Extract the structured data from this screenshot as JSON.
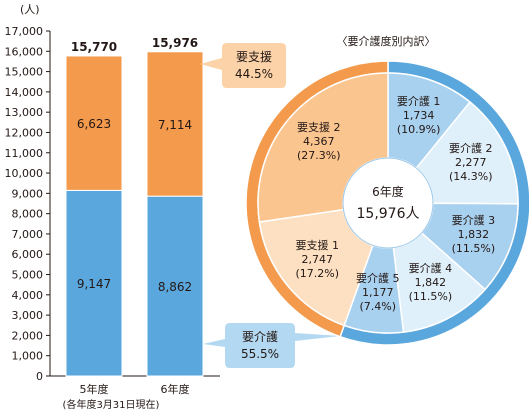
{
  "chart_data": [
    {
      "type": "bar",
      "stacked": true,
      "unit_label": "(人)",
      "categories": [
        "5年度",
        "6年度"
      ],
      "totals": [
        "15,770",
        "15,976"
      ],
      "series": [
        {
          "name": "要介護",
          "values": [
            9147,
            8862
          ],
          "labels": [
            "9,147",
            "8,862"
          ],
          "color": "#5aa7de"
        },
        {
          "name": "要支援",
          "values": [
            6623,
            7114
          ],
          "labels": [
            "6,623",
            "7,114"
          ],
          "color": "#f39a4c"
        }
      ],
      "ylim": [
        0,
        17000
      ],
      "yticks": [
        "0",
        "1,000",
        "2,000",
        "3,000",
        "4,000",
        "5,000",
        "6,000",
        "7,000",
        "8,000",
        "9,000",
        "10,000",
        "11,000",
        "12,000",
        "13,000",
        "14,000",
        "15,000",
        "16,000",
        "17,000"
      ],
      "note": "(各年度3月31日現在)",
      "callouts": [
        {
          "line1": "要支援",
          "line2": "44.5%",
          "fill": "#fcd2a8"
        },
        {
          "line1": "要介護",
          "line2": "55.5%",
          "fill": "#b3d9f2"
        }
      ]
    },
    {
      "type": "pie",
      "title": "〈要介護度別内訳〉",
      "center_label": "6年度",
      "center_value": "15,976人",
      "outer_ring": [
        {
          "name": "要支援",
          "value": 7114,
          "color": "#f39a4c"
        },
        {
          "name": "要介護",
          "value": 8862,
          "color": "#5aa7de"
        }
      ],
      "slices": [
        {
          "name": "要介護 1",
          "value": 1734,
          "value_label": "1,734",
          "percent": "(10.9%)",
          "color": "#a8d0ef"
        },
        {
          "name": "要介護 2",
          "value": 2277,
          "value_label": "2,277",
          "percent": "(14.3%)",
          "color": "#dff0fb"
        },
        {
          "name": "要介護 3",
          "value": 1832,
          "value_label": "1,832",
          "percent": "(11.5%)",
          "color": "#a8d0ef"
        },
        {
          "name": "要介護 4",
          "value": 1842,
          "value_label": "1,842",
          "percent": "(11.5%)",
          "color": "#dff0fb"
        },
        {
          "name": "要介護 5",
          "value": 1177,
          "value_label": "1,177",
          "percent": "(7.4%)",
          "color": "#a8d0ef"
        },
        {
          "name": "要支援 1",
          "value": 2747,
          "value_label": "2,747",
          "percent": "(17.2%)",
          "color": "#fde0c2"
        },
        {
          "name": "要支援 2",
          "value": 4367,
          "value_label": "4,367",
          "percent": "(27.3%)",
          "color": "#fbc590"
        }
      ]
    }
  ]
}
